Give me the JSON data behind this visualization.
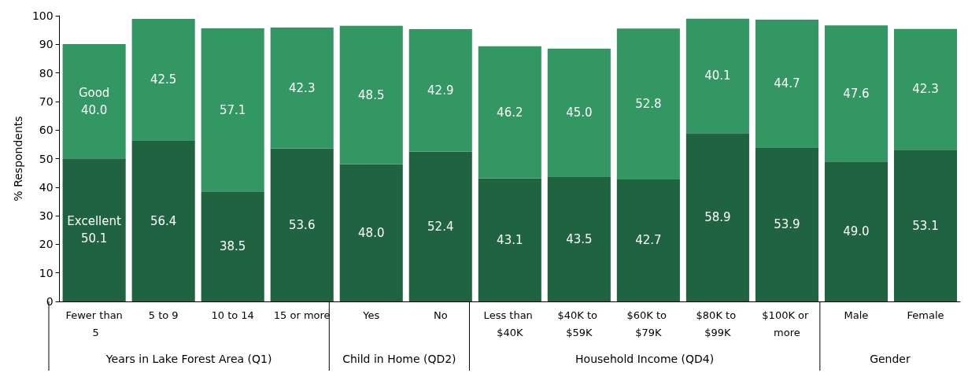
{
  "chart_data": {
    "type": "bar",
    "stacked": true,
    "ylabel": "% Respondents",
    "categories": [
      "Fewer than 5",
      "5 to 9",
      "10 to 14",
      "15 or more",
      "Yes",
      "No",
      "Less than $40K",
      "$40K to $59K",
      "$60K to $79K",
      "$80K to $99K",
      "$100K or more",
      "Male",
      "Female"
    ],
    "series": [
      {
        "name": "Excellent",
        "color": "#1f6340",
        "values": [
          50.1,
          56.4,
          38.5,
          53.6,
          48.0,
          52.4,
          43.1,
          43.5,
          42.7,
          58.9,
          53.9,
          49.0,
          53.1
        ],
        "value_labels": [
          "50.1",
          "56.4",
          "38.5",
          "53.6",
          "48.0",
          "52.4",
          "43.1",
          "43.5",
          "42.7",
          "58.9",
          "53.9",
          "49.0",
          "53.1"
        ]
      },
      {
        "name": "Good",
        "color": "#339764",
        "values": [
          40.0,
          42.5,
          57.1,
          42.3,
          48.5,
          42.9,
          46.2,
          45.0,
          52.8,
          40.1,
          44.7,
          47.6,
          42.3
        ],
        "value_labels": [
          "40.0",
          "42.5",
          "57.1",
          "42.3",
          "48.5",
          "42.9",
          "46.2",
          "45.0",
          "52.8",
          "40.1",
          "44.7",
          "47.6",
          "42.3"
        ]
      }
    ],
    "annotations": [
      "Years in Lake Forest Area (Q1)",
      "Child in Home (QD2)",
      "Household Income (QD4)",
      "Gender"
    ],
    "ylim": [
      0,
      100
    ],
    "yticks": [
      0,
      10,
      20,
      30,
      40,
      50,
      60,
      70,
      80,
      90,
      100
    ],
    "grid": false,
    "legend": false
  }
}
